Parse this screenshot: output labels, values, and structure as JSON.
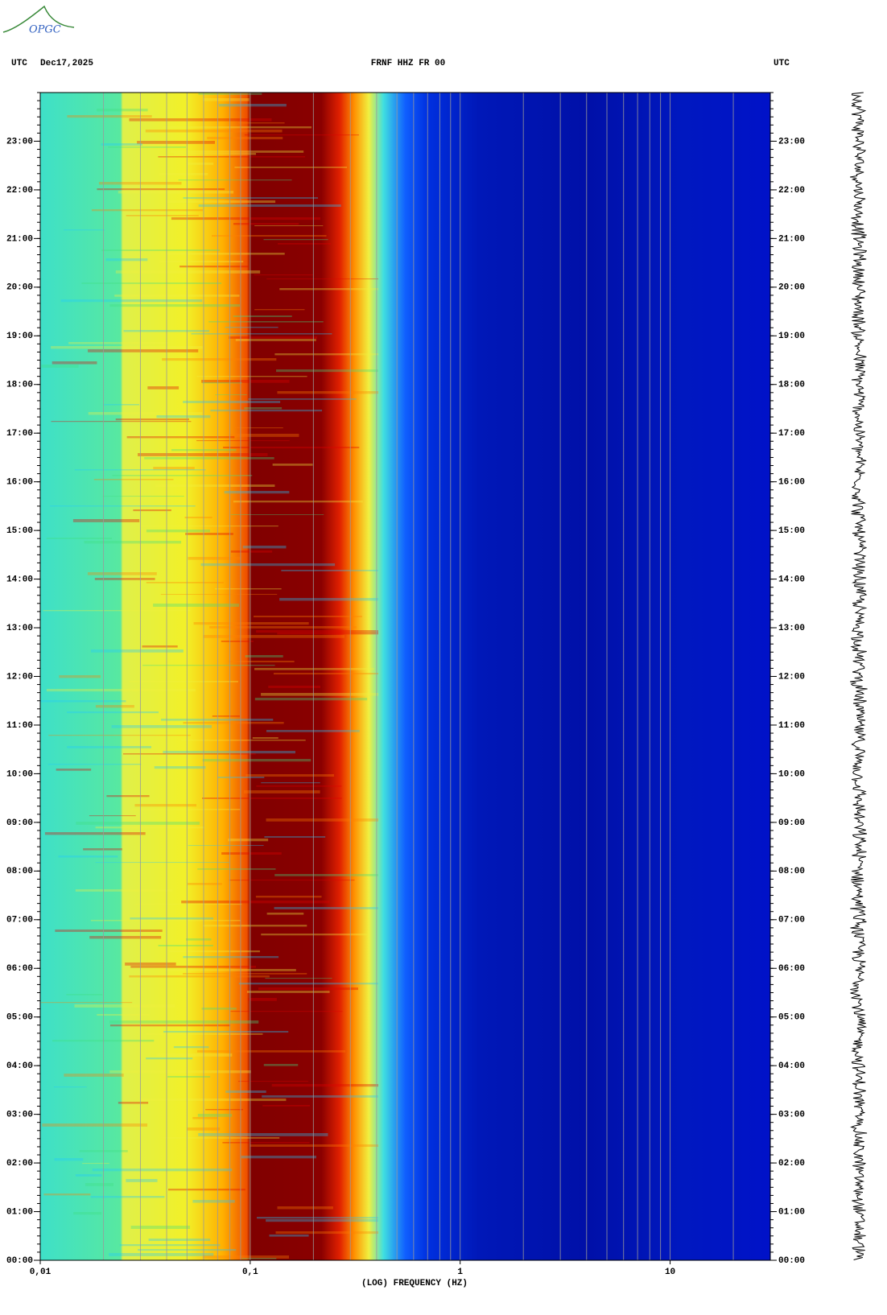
{
  "logo": "OPGC",
  "chart_data": {
    "type": "spectrogram",
    "header_left": "UTC",
    "date": "Dec17,2025",
    "title": "FRNF HHZ FR 00",
    "header_right": "UTC",
    "xlabel": "(LOG) FREQUENCY (HZ)",
    "xscale": "log",
    "xlim": [
      0.01,
      30
    ],
    "xticks": [
      {
        "value": 0.01,
        "label": "0,01"
      },
      {
        "value": 0.1,
        "label": "0,1"
      },
      1,
      10
    ],
    "ylim": [
      0,
      24
    ],
    "yticks": [
      {
        "value": 0,
        "label": "00:00"
      },
      {
        "value": 1,
        "label": "01:00"
      },
      {
        "value": 2,
        "label": "02:00"
      },
      {
        "value": 3,
        "label": "03:00"
      },
      {
        "value": 4,
        "label": "04:00"
      },
      {
        "value": 5,
        "label": "05:00"
      },
      {
        "value": 6,
        "label": "06:00"
      },
      {
        "value": 7,
        "label": "07:00"
      },
      {
        "value": 8,
        "label": "08:00"
      },
      {
        "value": 9,
        "label": "09:00"
      },
      {
        "value": 10,
        "label": "10:00"
      },
      {
        "value": 11,
        "label": "11:00"
      },
      {
        "value": 12,
        "label": "12:00"
      },
      {
        "value": 13,
        "label": "13:00"
      },
      {
        "value": 14,
        "label": "14:00"
      },
      {
        "value": 15,
        "label": "15:00"
      },
      {
        "value": 16,
        "label": "16:00"
      },
      {
        "value": 17,
        "label": "17:00"
      },
      {
        "value": 18,
        "label": "18:00"
      },
      {
        "value": 19,
        "label": "19:00"
      },
      {
        "value": 20,
        "label": "20:00"
      },
      {
        "value": 21,
        "label": "21:00"
      },
      {
        "value": 22,
        "label": "22:00"
      },
      {
        "value": 23,
        "label": "23:00"
      }
    ],
    "grid": true
  }
}
